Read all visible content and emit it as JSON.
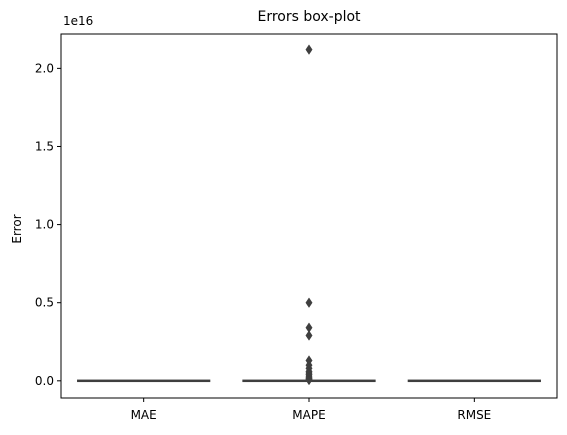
{
  "chart_data": {
    "type": "box",
    "title": "Errors box-plot",
    "xlabel": "",
    "ylabel": "Error",
    "y_scale_label": "1e16",
    "y_scale": 1e+16,
    "ylim": [
      -0.11,
      2.22
    ],
    "y_ticks": [
      0.0,
      0.5,
      1.0,
      1.5,
      2.0
    ],
    "y_tick_labels": [
      "0.0",
      "0.5",
      "1.0",
      "1.5",
      "2.0"
    ],
    "grid": false,
    "categories": [
      "MAE",
      "MAPE",
      "RMSE"
    ],
    "boxes": [
      {
        "name": "MAE",
        "q1": 0.0,
        "median": 0.0,
        "q3": 0.0,
        "whisker_low": 0.0,
        "whisker_high": 0.0,
        "outliers": []
      },
      {
        "name": "MAPE",
        "q1": 0.0,
        "median": 0.0,
        "q3": 0.0,
        "whisker_low": 0.0,
        "whisker_high": 0.0,
        "outliers": [
          2.12,
          0.5,
          0.34,
          0.29,
          0.13,
          0.1,
          0.08,
          0.06,
          0.05,
          0.04,
          0.03,
          0.02,
          0.015,
          0.01,
          0.005
        ]
      },
      {
        "name": "RMSE",
        "q1": 0.0,
        "median": 0.0,
        "q3": 0.0,
        "whisker_low": 0.0,
        "whisker_high": 0.0,
        "outliers": []
      }
    ],
    "colors": {
      "line": "#3f3f3f",
      "box_fill": "#3f3f3f",
      "axis": "#000000"
    }
  }
}
